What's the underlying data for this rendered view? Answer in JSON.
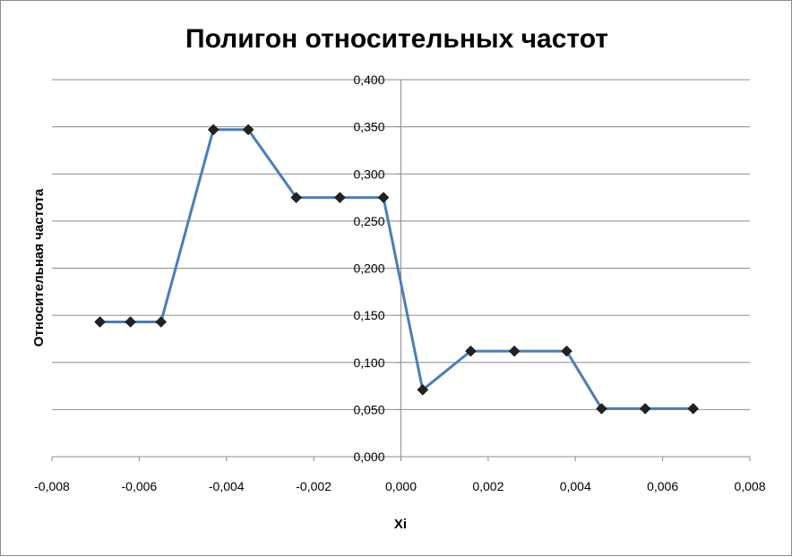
{
  "chart_data": {
    "type": "line",
    "title": "Полигон относительных частот",
    "xlabel": "Xi",
    "ylabel": "Относительная частота",
    "xlim": [
      -0.008,
      0.008
    ],
    "ylim": [
      0,
      0.4
    ],
    "x_ticks": [
      "-0,008",
      "-0,006",
      "-0,004",
      "-0,002",
      "0,000",
      "0,002",
      "0,004",
      "0,006",
      "0,008"
    ],
    "y_ticks": [
      "0,000",
      "0,050",
      "0,100",
      "0,150",
      "0,200",
      "0,250",
      "0,300",
      "0,350",
      "0,400"
    ],
    "grid": "horizontal major",
    "legend": "none",
    "series": [
      {
        "x": [
          -0.0069,
          -0.0062,
          -0.0055,
          -0.0043,
          -0.0035,
          -0.0024,
          -0.0014,
          -0.0004,
          0.0005,
          0.0016,
          0.0026,
          0.0038,
          0.0046,
          0.0056,
          0.0067
        ],
        "y": [
          0.143,
          0.143,
          0.143,
          0.347,
          0.347,
          0.275,
          0.275,
          0.275,
          0.071,
          0.112,
          0.112,
          0.112,
          0.051,
          0.051,
          0.051
        ]
      }
    ],
    "colors": {
      "line": "#4a7ebb",
      "marker": "#222222",
      "grid": "#8c8c8c"
    }
  }
}
